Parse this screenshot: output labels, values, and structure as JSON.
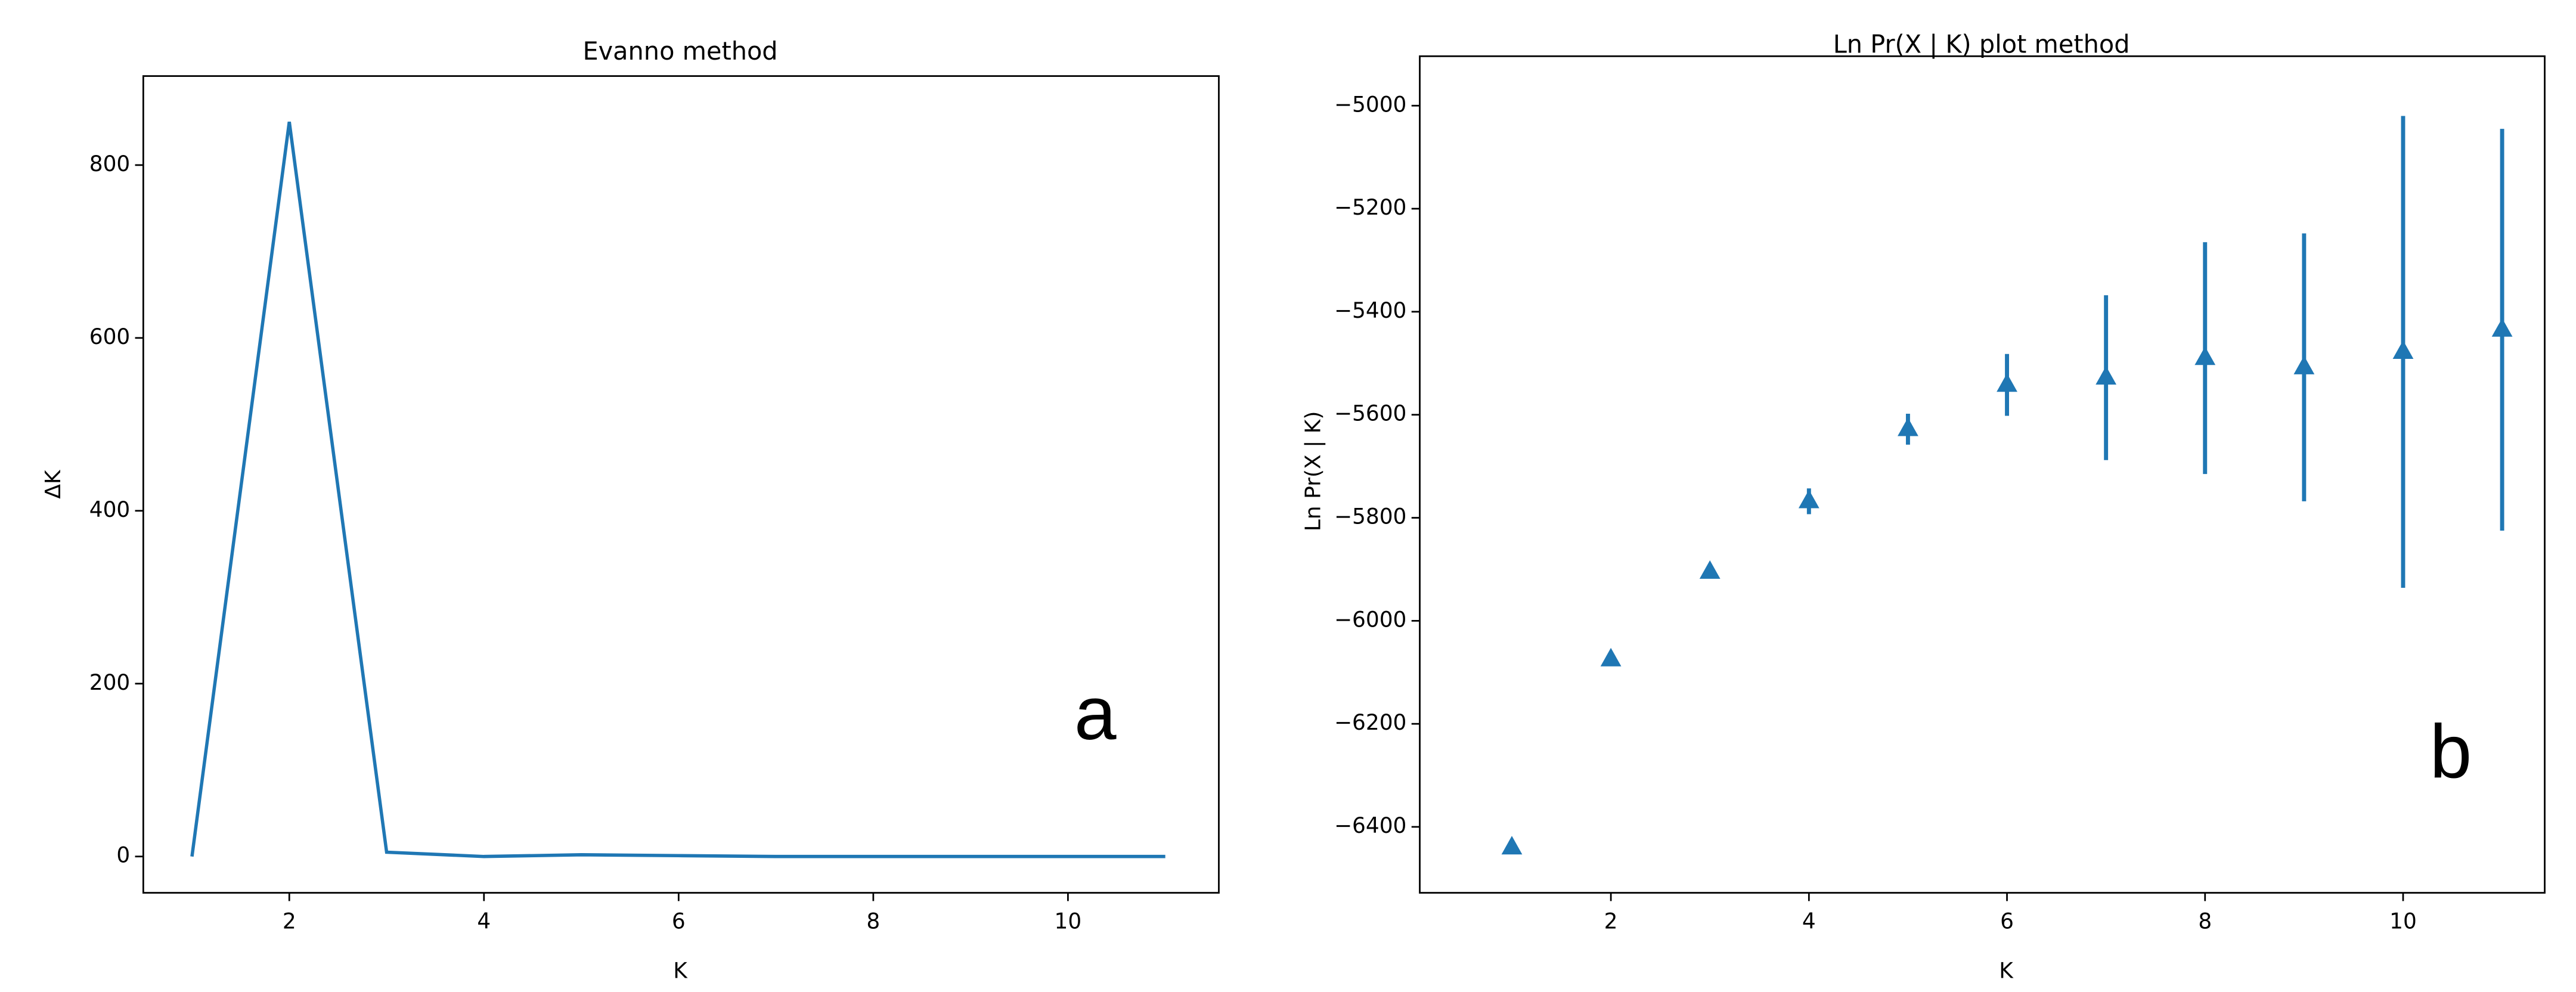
{
  "chart_data": [
    {
      "type": "line",
      "title": "Evanno method",
      "xlabel": "K",
      "ylabel": "ΔK",
      "annotation": "a",
      "color": "#1f77b4",
      "x": [
        1,
        2,
        3,
        4,
        5,
        6,
        7,
        8,
        9,
        10,
        11
      ],
      "values": [
        0,
        850,
        5,
        0,
        2,
        1,
        0,
        0,
        0,
        0,
        0
      ],
      "xlim": [
        0.5,
        11.55
      ],
      "xticks": [
        2,
        4,
        6,
        8,
        10
      ],
      "ylim": [
        -42,
        903
      ],
      "yticks": [
        0,
        200,
        400,
        600,
        800
      ]
    },
    {
      "type": "errorbar",
      "title": "Ln Pr(X | K) plot method",
      "xlabel": "K",
      "ylabel": "Ln Pr(X | K)",
      "annotation": "b",
      "color": "#1f77b4",
      "marker": "triangle",
      "x": [
        1,
        2,
        3,
        4,
        5,
        6,
        7,
        8,
        9,
        10,
        11
      ],
      "values": [
        -6440,
        -6075,
        -5905,
        -5768,
        -5628,
        -5542,
        -5528,
        -5490,
        -5508,
        -5478,
        -5435
      ],
      "errors": [
        0,
        0,
        0,
        25,
        30,
        60,
        160,
        225,
        260,
        458,
        390
      ],
      "xlim": [
        0.07,
        11.43
      ],
      "xticks": [
        2,
        4,
        6,
        8,
        10
      ],
      "ylim": [
        -6528,
        -4904
      ],
      "yticks": [
        {
          "value": -6400,
          "label": "−6400"
        },
        {
          "value": -6200,
          "label": "−6200"
        },
        {
          "value": -6000,
          "label": "−6000"
        },
        {
          "value": -5800,
          "label": "−5800"
        },
        {
          "value": -5600,
          "label": "−5600"
        },
        {
          "value": -5400,
          "label": "−5400"
        },
        {
          "value": -5200,
          "label": "−5200"
        },
        {
          "value": -5000,
          "label": "−5000"
        }
      ]
    }
  ]
}
